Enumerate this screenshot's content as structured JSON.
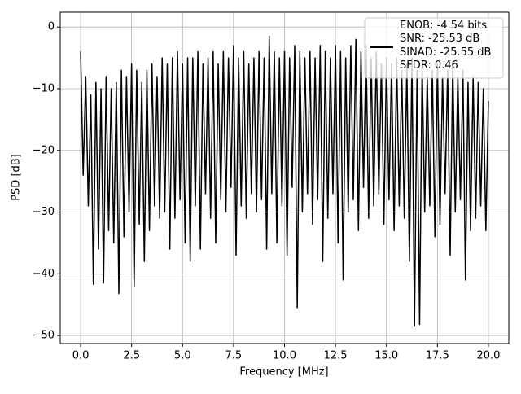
{
  "chart_data": {
    "type": "line",
    "xlabel": "Frequency [MHz]",
    "ylabel": "PSD [dB]",
    "xlim": [
      -1.0,
      21.0
    ],
    "ylim": [
      -51.3,
      2.4
    ],
    "xticks": [
      {
        "value": 0,
        "label": "0.0"
      },
      2.5,
      {
        "value": 5,
        "label": "5.0"
      },
      7.5,
      {
        "value": 10,
        "label": "10.0"
      },
      12.5,
      {
        "value": 15,
        "label": "15.0"
      },
      17.5,
      {
        "value": 20,
        "label": "20.0"
      }
    ],
    "yticks": [
      {
        "value": 0,
        "label": "0"
      },
      {
        "value": -10,
        "label": "−10"
      },
      {
        "value": -20,
        "label": "−20"
      },
      {
        "value": -30,
        "label": "−30"
      },
      {
        "value": -40,
        "label": "−40"
      },
      {
        "value": -50,
        "label": "−50"
      }
    ],
    "grid": true,
    "legend": "upper right",
    "x": [
      0,
      0.125,
      0.25,
      0.375,
      0.5,
      0.625,
      0.75,
      0.875,
      1,
      1.125,
      1.25,
      1.375,
      1.5,
      1.625,
      1.75,
      1.875,
      2,
      2.125,
      2.25,
      2.375,
      2.5,
      2.625,
      2.75,
      2.875,
      3,
      3.125,
      3.25,
      3.375,
      3.5,
      3.625,
      3.75,
      3.875,
      4,
      4.125,
      4.25,
      4.375,
      4.5,
      4.625,
      4.75,
      4.875,
      5,
      5.125,
      5.25,
      5.375,
      5.5,
      5.625,
      5.75,
      5.875,
      6,
      6.125,
      6.25,
      6.375,
      6.5,
      6.625,
      6.75,
      6.875,
      7,
      7.125,
      7.25,
      7.375,
      7.5,
      7.625,
      7.75,
      7.875,
      8,
      8.125,
      8.25,
      8.375,
      8.5,
      8.625,
      8.75,
      8.875,
      9,
      9.125,
      9.25,
      9.375,
      9.5,
      9.625,
      9.75,
      9.875,
      10,
      10.125,
      10.25,
      10.375,
      10.5,
      10.625,
      10.75,
      10.875,
      11,
      11.125,
      11.25,
      11.375,
      11.5,
      11.625,
      11.75,
      11.875,
      12,
      12.125,
      12.25,
      12.375,
      12.5,
      12.625,
      12.75,
      12.875,
      13,
      13.125,
      13.25,
      13.375,
      13.5,
      13.625,
      13.75,
      13.875,
      14,
      14.125,
      14.25,
      14.375,
      14.5,
      14.625,
      14.75,
      14.875,
      15,
      15.125,
      15.25,
      15.375,
      15.5,
      15.625,
      15.75,
      15.875,
      16,
      16.125,
      16.25,
      16.375,
      16.5,
      16.625,
      16.75,
      16.875,
      17,
      17.125,
      17.25,
      17.375,
      17.5,
      17.625,
      17.75,
      17.875,
      18,
      18.125,
      18.25,
      18.375,
      18.5,
      18.625,
      18.75,
      18.875,
      19,
      19.125,
      19.25,
      19.375,
      19.5,
      19.625,
      19.75,
      19.875,
      20
    ],
    "series": [
      {
        "name": "ENOB: -4.54 bits\nSNR: -25.53 dB\nSINAD: -25.55 dB\nSFDR: 0.46",
        "color": "#000000",
        "values": [
          -4,
          -24,
          -8,
          -29,
          -11,
          -41.7,
          -9,
          -36,
          -10,
          -41.5,
          -8,
          -33,
          -10,
          -35,
          -9,
          -43.2,
          -7,
          -34,
          -8,
          -30,
          -6,
          -42,
          -7,
          -32,
          -9,
          -38,
          -7,
          -33,
          -6,
          -29,
          -8,
          -31,
          -5,
          -30,
          -6,
          -36,
          -5,
          -31,
          -4,
          -28,
          -6,
          -35,
          -5,
          -38,
          -5,
          -29,
          -4,
          -36,
          -6,
          -27,
          -5,
          -31,
          -4,
          -35,
          -6,
          -28,
          -4,
          -30,
          -5,
          -26,
          -3,
          -37,
          -5,
          -29,
          -4,
          -31,
          -6,
          -27,
          -5,
          -30,
          -4,
          -28,
          -5,
          -36,
          -1.5,
          -27,
          -4,
          -35,
          -5,
          -29,
          -4,
          -37,
          -5,
          -26,
          -3,
          -45.5,
          -4,
          -30,
          -5,
          -27,
          -4,
          -32,
          -5,
          -28,
          -3,
          -38,
          -4,
          -31,
          -5,
          -27,
          -3,
          -35,
          -4,
          -41,
          -5,
          -30,
          -3,
          -28,
          -2,
          -33,
          -4,
          -26,
          -3,
          -31,
          -5,
          -29,
          -4,
          -27,
          -6,
          -32,
          -5,
          -28,
          -6,
          -33,
          -5,
          -29,
          -7,
          -31,
          -6,
          -38,
          -5,
          -48.5,
          -7,
          -48.2,
          -6,
          -30,
          -8,
          -29,
          -7,
          -34,
          -6,
          -32,
          -8,
          -27,
          -7,
          -37,
          -6,
          -30,
          -8,
          -28,
          -7,
          -41,
          -9,
          -33,
          -8,
          -31,
          -9,
          -29,
          -10,
          -33,
          -12
        ]
      }
    ]
  }
}
